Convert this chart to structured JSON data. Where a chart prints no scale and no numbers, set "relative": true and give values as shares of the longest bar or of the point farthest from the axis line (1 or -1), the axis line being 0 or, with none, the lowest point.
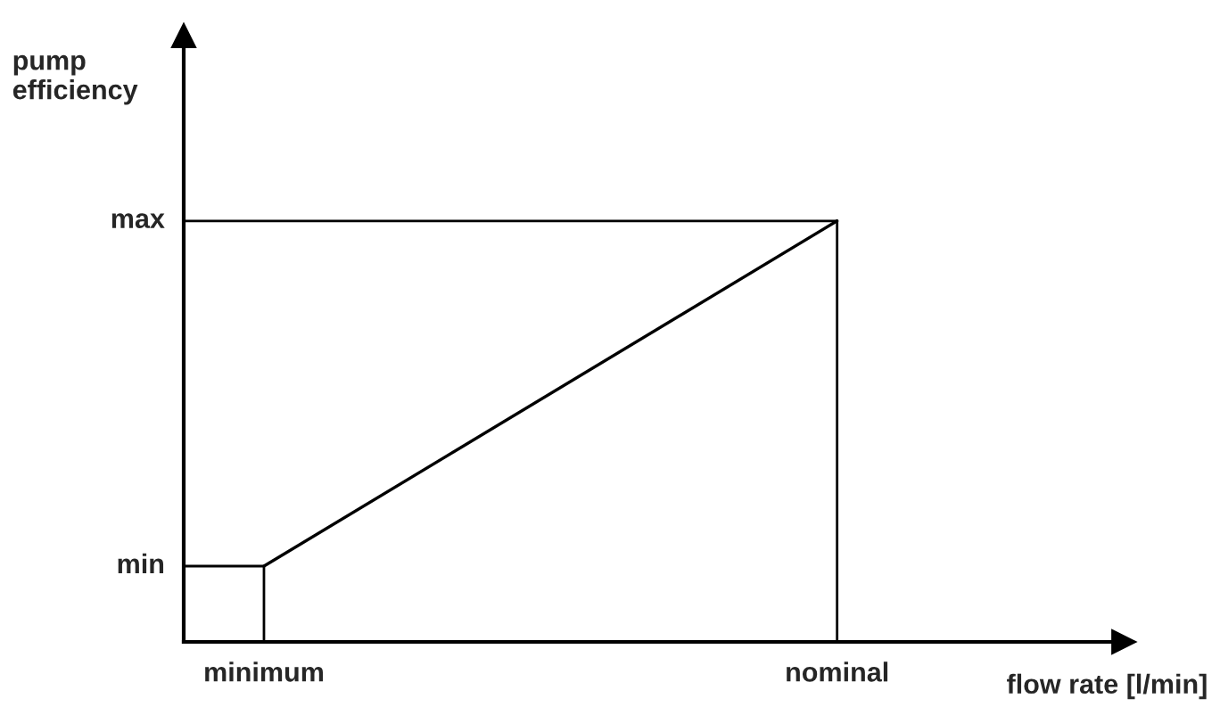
{
  "chart_data": {
    "type": "line",
    "xlabel": "flow rate [l/min]",
    "ylabel": "pump\nefficiency",
    "relative": true,
    "categories": [
      "minimum",
      "nominal"
    ],
    "series": [
      {
        "color": "#000000",
        "values": [
          0.18,
          1
        ]
      }
    ],
    "annotations": [
      "min",
      "max"
    ],
    "grid": false,
    "legend": false,
    "marker": "none",
    "line_style": "solid"
  }
}
